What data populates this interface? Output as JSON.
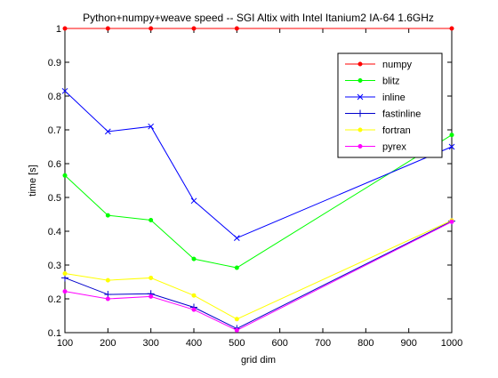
{
  "chart_data": {
    "type": "line",
    "title": "Python+numpy+weave speed -- SGI Altix with Intel Itanium2 IA-64 1.6GHz",
    "xlabel": "grid dim",
    "ylabel": "time [s]",
    "xlim": [
      100,
      1000
    ],
    "ylim": [
      0.1,
      1.0
    ],
    "xticks": [
      100,
      200,
      300,
      400,
      500,
      600,
      700,
      800,
      900,
      1000
    ],
    "yticks": [
      0.1,
      0.2,
      0.3,
      0.4,
      0.5,
      0.6,
      0.7,
      0.8,
      0.9,
      1.0
    ],
    "xtick_labels": [
      "100",
      "200",
      "300",
      "400",
      "500",
      "600",
      "700",
      "800",
      "900",
      "1000"
    ],
    "ytick_labels": [
      "0.1",
      "0.2",
      "0.3",
      "0.4",
      "0.5",
      "0.6",
      "0.7",
      "0.8",
      "0.9",
      "1"
    ],
    "grid": false,
    "legend_position": "top-right",
    "x": [
      100,
      200,
      300,
      400,
      500,
      1000
    ],
    "series": [
      {
        "name": "numpy",
        "values": [
          1.0,
          1.0,
          1.0,
          1.0,
          1.0,
          1.0
        ],
        "color": "#ff0000",
        "marker": "dot"
      },
      {
        "name": "blitz",
        "values": [
          0.565,
          0.447,
          0.433,
          0.318,
          0.292,
          0.685
        ],
        "color": "#00ff00",
        "marker": "dot"
      },
      {
        "name": "inline",
        "values": [
          0.815,
          0.695,
          0.71,
          0.49,
          0.38,
          0.65
        ],
        "color": "#0000ff",
        "marker": "x"
      },
      {
        "name": "fastinline",
        "values": [
          0.262,
          0.213,
          0.215,
          0.175,
          0.112,
          0.43
        ],
        "color": "#0000cc",
        "marker": "plus"
      },
      {
        "name": "fortran",
        "values": [
          0.275,
          0.255,
          0.262,
          0.21,
          0.14,
          0.432
        ],
        "color": "#ffff00",
        "marker": "dot"
      },
      {
        "name": "pyrex",
        "values": [
          0.222,
          0.2,
          0.207,
          0.168,
          0.107,
          0.428
        ],
        "color": "#ff00ff",
        "marker": "dot"
      }
    ]
  }
}
